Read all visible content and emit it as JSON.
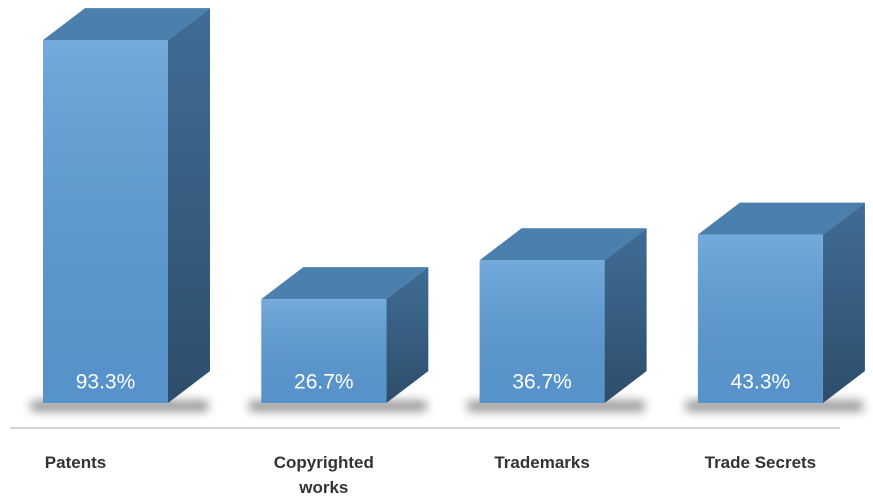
{
  "chart_data": {
    "type": "bar3d",
    "categories": [
      "Patents",
      "Copyrighted works",
      "Trademarks",
      "Trade Secrets"
    ],
    "values": [
      93.3,
      26.7,
      36.7,
      43.3
    ],
    "value_labels": [
      "93.3%",
      "26.7%",
      "36.7%",
      "43.3%"
    ],
    "color": "#5b9bd5"
  }
}
